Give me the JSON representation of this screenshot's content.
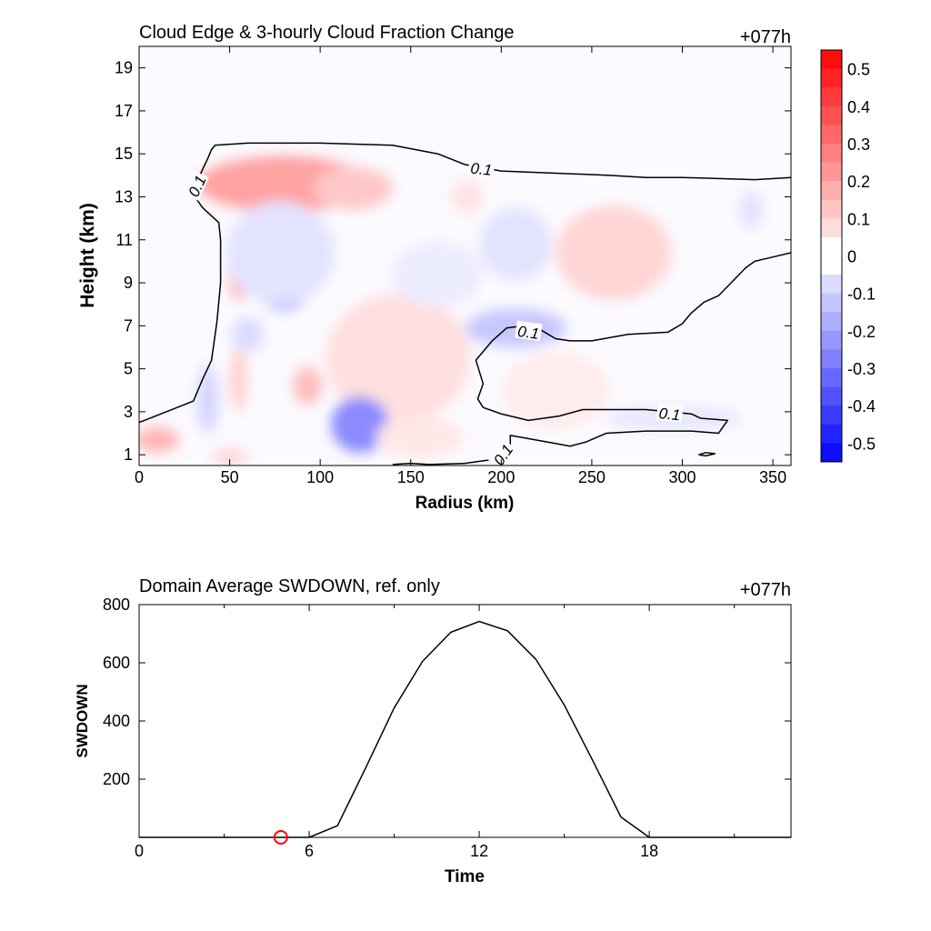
{
  "colors": {
    "positive": "#ff0000",
    "negative": "#0000ff",
    "line": "#000000",
    "marker": "#ff0000"
  },
  "chart_data": [
    {
      "type": "heatmap",
      "title": "Cloud Edge & 3-hourly Cloud Fraction Change",
      "time_label": "+077h",
      "xlabel": "Radius (km)",
      "ylabel": "Height (km)",
      "xlim": [
        0,
        360
      ],
      "ylim": [
        0.5,
        20
      ],
      "xticks": [
        0,
        50,
        100,
        150,
        200,
        250,
        300,
        350
      ],
      "yticks": [
        1,
        3,
        5,
        7,
        9,
        11,
        13,
        15,
        17,
        19
      ],
      "colorbar": {
        "range": [
          -0.55,
          0.55
        ],
        "levels": [
          0.55,
          0.5,
          0.45,
          0.4,
          0.35,
          0.3,
          0.25,
          0.2,
          0.15,
          0.1,
          0.05,
          -0.05,
          -0.1,
          -0.15,
          -0.2,
          -0.25,
          -0.3,
          -0.35,
          -0.4,
          -0.45,
          -0.5,
          -0.55
        ],
        "tick_labels": [
          "0.5",
          "0.4",
          "0.3",
          "0.2",
          "0.1",
          "0",
          "-0.1",
          "-0.2",
          "-0.3",
          "-0.4",
          "-0.5"
        ],
        "tick_values": [
          0.5,
          0.4,
          0.3,
          0.2,
          0.1,
          0,
          -0.1,
          -0.2,
          -0.3,
          -0.4,
          -0.5
        ]
      },
      "anomalies": [
        {
          "x": 80,
          "y": 13.6,
          "rx": 48,
          "ry": 1.3,
          "v": 0.2
        },
        {
          "x": 118,
          "y": 13.4,
          "rx": 22,
          "ry": 1.0,
          "v": 0.12
        },
        {
          "x": 55,
          "y": 9.6,
          "rx": 6,
          "ry": 1.5,
          "v": 0.14
        },
        {
          "x": 80,
          "y": 9.3,
          "rx": 16,
          "ry": 1.6,
          "v": -0.18
        },
        {
          "x": 78,
          "y": 10.4,
          "rx": 30,
          "ry": 2.4,
          "v": -0.06
        },
        {
          "x": 155,
          "y": 5.3,
          "rx": 24,
          "ry": 2.0,
          "v": 0.18
        },
        {
          "x": 143,
          "y": 5.5,
          "rx": 40,
          "ry": 3.0,
          "v": 0.07
        },
        {
          "x": 122,
          "y": 2.4,
          "rx": 16,
          "ry": 1.3,
          "v": -0.25
        },
        {
          "x": 93,
          "y": 4.2,
          "rx": 8,
          "ry": 0.9,
          "v": 0.14
        },
        {
          "x": 55,
          "y": 4.5,
          "rx": 5,
          "ry": 1.5,
          "v": 0.1
        },
        {
          "x": 10,
          "y": 1.7,
          "rx": 12,
          "ry": 0.6,
          "v": 0.16
        },
        {
          "x": 60,
          "y": 6.6,
          "rx": 9,
          "ry": 0.8,
          "v": -0.08
        },
        {
          "x": 38,
          "y": 3.6,
          "rx": 6,
          "ry": 1.6,
          "v": -0.09
        },
        {
          "x": 208,
          "y": 6.9,
          "rx": 28,
          "ry": 0.9,
          "v": -0.12
        },
        {
          "x": 262,
          "y": 10.4,
          "rx": 32,
          "ry": 2.2,
          "v": 0.09
        },
        {
          "x": 208,
          "y": 10.8,
          "rx": 20,
          "ry": 1.7,
          "v": -0.06
        },
        {
          "x": 181,
          "y": 13.0,
          "rx": 9,
          "ry": 0.8,
          "v": 0.06
        },
        {
          "x": 338,
          "y": 12.4,
          "rx": 7,
          "ry": 0.9,
          "v": -0.06
        },
        {
          "x": 295,
          "y": 2.7,
          "rx": 38,
          "ry": 0.6,
          "v": -0.05
        },
        {
          "x": 50,
          "y": 0.9,
          "rx": 10,
          "ry": 0.4,
          "v": 0.09
        },
        {
          "x": 155,
          "y": 1.8,
          "rx": 24,
          "ry": 1.0,
          "v": 0.05
        },
        {
          "x": 230,
          "y": 4.0,
          "rx": 30,
          "ry": 1.8,
          "v": 0.04
        },
        {
          "x": 165,
          "y": 9.4,
          "rx": 25,
          "ry": 1.5,
          "v": -0.04
        }
      ],
      "contour_level": "0.1",
      "contours": [
        [
          [
            0,
            2.5
          ],
          [
            15,
            3.0
          ],
          [
            30,
            3.5
          ],
          [
            35,
            4.5
          ],
          [
            40,
            5.4
          ],
          [
            43,
            7.2
          ],
          [
            45,
            9
          ],
          [
            45,
            11
          ],
          [
            44,
            11.8
          ],
          [
            35,
            12.5
          ],
          [
            30,
            13.1
          ],
          [
            31,
            13.4
          ],
          [
            33,
            13.9
          ],
          [
            38,
            14.8
          ],
          [
            40,
            15.2
          ],
          [
            42,
            15.4
          ],
          [
            60,
            15.5
          ],
          [
            100,
            15.5
          ],
          [
            140,
            15.4
          ],
          [
            165,
            15.0
          ],
          [
            180,
            14.5
          ],
          [
            200,
            14.2
          ],
          [
            230,
            14.1
          ],
          [
            260,
            14.0
          ],
          [
            280,
            13.9
          ],
          [
            300,
            13.9
          ],
          [
            340,
            13.8
          ],
          [
            360,
            13.9
          ]
        ],
        [
          [
            360,
            10.4
          ],
          [
            350,
            10.2
          ],
          [
            340,
            10.0
          ],
          [
            335,
            9.7
          ],
          [
            320,
            8.4
          ],
          [
            312,
            8.1
          ],
          [
            305,
            7.6
          ],
          [
            300,
            7.1
          ],
          [
            292,
            6.7
          ],
          [
            270,
            6.6
          ],
          [
            250,
            6.3
          ],
          [
            238,
            6.3
          ],
          [
            230,
            6.4
          ],
          [
            220,
            6.9
          ],
          [
            212,
            7.0
          ],
          [
            203,
            6.9
          ],
          [
            195,
            6.3
          ],
          [
            186,
            5.4
          ],
          [
            190,
            4.3
          ],
          [
            187,
            3.6
          ],
          [
            190,
            3.2
          ],
          [
            200,
            2.9
          ],
          [
            215,
            2.6
          ],
          [
            232,
            2.8
          ],
          [
            245,
            3.1
          ],
          [
            280,
            3.1
          ],
          [
            305,
            2.9
          ],
          [
            310,
            2.7
          ],
          [
            325,
            2.6
          ],
          [
            320,
            2.0
          ],
          [
            305,
            2.1
          ],
          [
            280,
            2.1
          ],
          [
            258,
            2.0
          ],
          [
            247,
            1.6
          ],
          [
            238,
            1.4
          ],
          [
            225,
            1.6
          ],
          [
            205,
            1.9
          ],
          [
            205,
            1.4
          ],
          [
            200,
            1.1
          ],
          [
            197,
            0.8
          ],
          [
            180,
            0.6
          ],
          [
            160,
            0.55
          ],
          [
            150,
            0.6
          ],
          [
            140,
            0.55
          ]
        ],
        [
          [
            309,
            1.0
          ],
          [
            313,
            1.1
          ],
          [
            318,
            1.05
          ],
          [
            313,
            0.95
          ],
          [
            309,
            1.0
          ]
        ]
      ],
      "contour_labels": [
        {
          "x": 32,
          "y": 13.5,
          "rot": -65
        },
        {
          "x": 189,
          "y": 14.3,
          "rot": 6
        },
        {
          "x": 215,
          "y": 6.7,
          "rot": 8
        },
        {
          "x": 293,
          "y": 2.9,
          "rot": 6
        },
        {
          "x": 201,
          "y": 1.0,
          "rot": -55
        }
      ]
    },
    {
      "type": "line",
      "title": "Domain Average SWDOWN, ref. only",
      "time_label": "+077h",
      "xlabel": "Time",
      "ylabel": "SWDOWN",
      "xlim": [
        0,
        23
      ],
      "ylim": [
        0,
        800
      ],
      "xticks": [
        0,
        6,
        12,
        18
      ],
      "yticks": [
        200,
        400,
        600,
        800
      ],
      "minor_xticks": [
        3,
        9,
        15,
        21
      ],
      "x": [
        0,
        1,
        2,
        3,
        4,
        5,
        6,
        7,
        8,
        9,
        10,
        11,
        12,
        13,
        14,
        15,
        16,
        17,
        18,
        19,
        20,
        21,
        22,
        23
      ],
      "values": [
        0,
        0,
        0,
        0,
        0,
        0,
        0,
        40,
        240,
        445,
        605,
        705,
        742,
        710,
        612,
        455,
        265,
        70,
        0,
        0,
        0,
        0,
        0,
        0
      ],
      "marker": {
        "x": 5,
        "y": 0
      }
    }
  ]
}
